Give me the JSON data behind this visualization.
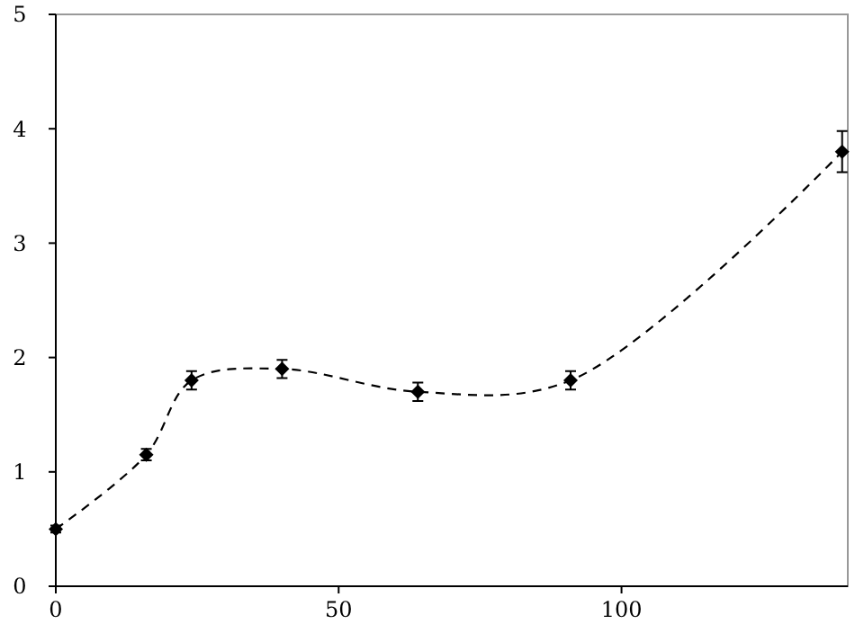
{
  "chart_data": {
    "type": "line",
    "x": [
      0,
      16,
      24,
      40,
      64,
      91,
      139
    ],
    "series": [
      {
        "color": "#000000",
        "values": [
          0.5,
          1.15,
          1.8,
          1.9,
          1.7,
          1.8,
          3.8
        ],
        "errors": [
          0.03,
          0.05,
          0.08,
          0.08,
          0.08,
          0.08,
          0.18
        ]
      }
    ],
    "xlim": [
      0,
      140
    ],
    "xticks": [
      0,
      50,
      100
    ],
    "ylim": [
      0,
      5
    ],
    "yticks": [
      0,
      1,
      2,
      3,
      4,
      5
    ],
    "grid": false,
    "marker": "diamond",
    "line_style": "dashed"
  }
}
